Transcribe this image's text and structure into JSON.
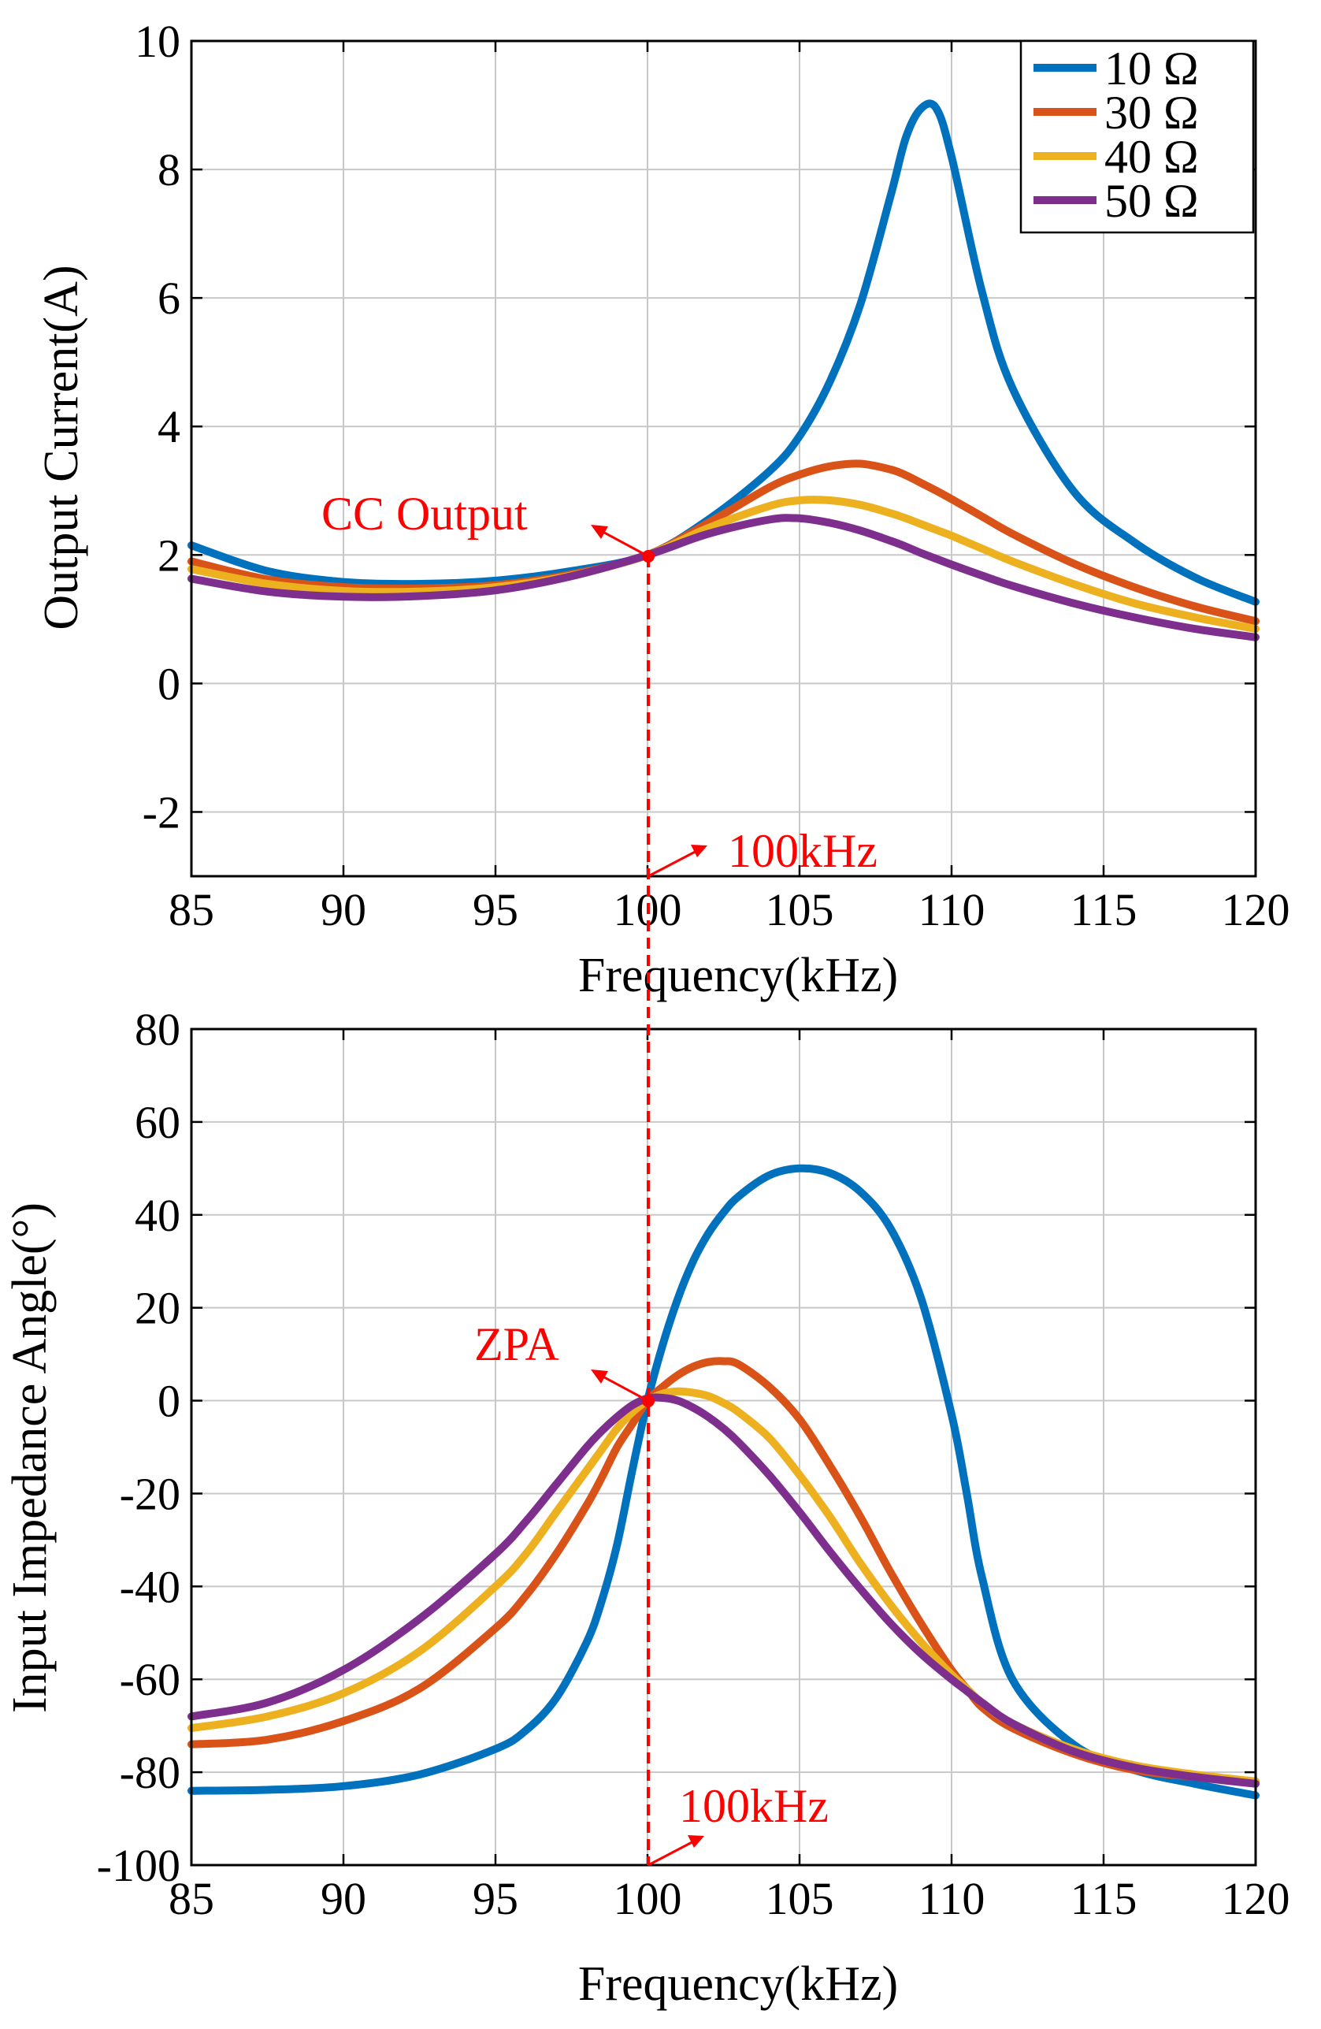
{
  "chart_data": [
    {
      "type": "line",
      "title": "",
      "xlabel": "Frequency(kHz)",
      "ylabel": "Output Current(A)",
      "xlim": [
        85,
        120
      ],
      "ylim": [
        -3,
        10
      ],
      "xticks": [
        85,
        90,
        95,
        100,
        105,
        110,
        115,
        120
      ],
      "yticks": [
        -2,
        0,
        2,
        4,
        6,
        8,
        10
      ],
      "xtick_labels": [
        "85",
        "90",
        "95",
        "100",
        "105",
        "110",
        "115",
        "120"
      ],
      "ytick_labels": [
        "-2",
        "0",
        "2",
        "4",
        "6",
        "8",
        "10"
      ],
      "grid": true,
      "legend": {
        "position": "top-right",
        "entries": [
          "10 Ω",
          "30 Ω",
          "40 Ω",
          "50 Ω"
        ]
      },
      "x": [
        85,
        87.5,
        90,
        92.5,
        95,
        97.5,
        100,
        102,
        104,
        105,
        106,
        107,
        108,
        108.5,
        109,
        109.5,
        110,
        111,
        112,
        114,
        116,
        118,
        120
      ],
      "series": [
        {
          "name": "10 Ω",
          "color": "#0072BD",
          "values": [
            2.15,
            1.75,
            1.58,
            1.55,
            1.6,
            1.75,
            2.0,
            2.55,
            3.3,
            3.85,
            4.7,
            5.9,
            7.6,
            8.5,
            8.95,
            8.95,
            8.2,
            6.1,
            4.6,
            3.0,
            2.2,
            1.65,
            1.27
          ]
        },
        {
          "name": "30 Ω",
          "color": "#D95319",
          "values": [
            1.9,
            1.62,
            1.5,
            1.48,
            1.53,
            1.7,
            2.0,
            2.5,
            3.05,
            3.25,
            3.38,
            3.42,
            3.33,
            3.24,
            3.12,
            3.0,
            2.87,
            2.6,
            2.33,
            1.87,
            1.5,
            1.2,
            0.97
          ]
        },
        {
          "name": "40 Ω",
          "color": "#EDB120",
          "values": [
            1.78,
            1.55,
            1.44,
            1.43,
            1.5,
            1.68,
            2.0,
            2.42,
            2.76,
            2.85,
            2.85,
            2.78,
            2.65,
            2.57,
            2.48,
            2.39,
            2.3,
            2.1,
            1.9,
            1.55,
            1.25,
            1.03,
            0.85
          ]
        },
        {
          "name": "50 Ω",
          "color": "#7E2F8E",
          "values": [
            1.63,
            1.43,
            1.35,
            1.36,
            1.45,
            1.67,
            2.0,
            2.33,
            2.55,
            2.57,
            2.5,
            2.38,
            2.22,
            2.13,
            2.03,
            1.94,
            1.85,
            1.68,
            1.52,
            1.25,
            1.03,
            0.85,
            0.72
          ]
        }
      ],
      "annotations": [
        {
          "text": "CC Output",
          "x": 100,
          "y": 2
        },
        {
          "text": "100kHz",
          "x": 100,
          "y": -3
        }
      ]
    },
    {
      "type": "line",
      "title": "",
      "xlabel": "Frequency(kHz)",
      "ylabel": "Input Impedance Angle(°)",
      "xlim": [
        85,
        120
      ],
      "ylim": [
        -100,
        80
      ],
      "xticks": [
        85,
        90,
        95,
        100,
        105,
        110,
        115,
        120
      ],
      "yticks": [
        -100,
        -80,
        -60,
        -40,
        -20,
        0,
        20,
        40,
        60,
        80
      ],
      "xtick_labels": [
        "85",
        "90",
        "95",
        "100",
        "105",
        "110",
        "115",
        "120"
      ],
      "ytick_labels": [
        "-100",
        "-80",
        "-60",
        "-40",
        "-20",
        "0",
        "20",
        "40",
        "60",
        "80"
      ],
      "grid": true,
      "x": [
        85,
        87.5,
        90,
        92.5,
        95,
        96,
        97,
        98,
        98.5,
        99,
        99.5,
        100,
        100.5,
        101,
        101.5,
        102,
        102.5,
        103,
        104,
        105,
        106,
        107,
        108,
        109,
        110,
        110.5,
        111,
        112,
        114,
        116,
        118,
        120
      ],
      "series": [
        {
          "name": "10 Ω",
          "color": "#0072BD",
          "values": [
            -84,
            -83.8,
            -83,
            -80.5,
            -75,
            -71,
            -64,
            -52,
            -43,
            -31,
            -15,
            0,
            12,
            22,
            30,
            36,
            40.5,
            44,
            48.5,
            50,
            49,
            45,
            37,
            22,
            -3,
            -20,
            -38,
            -60,
            -74,
            -79.5,
            -82.5,
            -85
          ]
        },
        {
          "name": "30 Ω",
          "color": "#D95319",
          "values": [
            -74,
            -73,
            -69,
            -62,
            -49,
            -42,
            -33,
            -22.5,
            -16.5,
            -10,
            -5,
            0,
            3,
            5.5,
            7.3,
            8.3,
            8.5,
            7.8,
            3,
            -4,
            -14,
            -25,
            -37,
            -48,
            -58,
            -62,
            -66,
            -70.5,
            -76,
            -79.5,
            -81,
            -82
          ]
        },
        {
          "name": "40 Ω",
          "color": "#EDB120",
          "values": [
            -70.5,
            -68,
            -63,
            -54,
            -40,
            -33,
            -24,
            -15,
            -10.5,
            -6,
            -2.5,
            0,
            1.5,
            2,
            1.7,
            1,
            -0.5,
            -2.5,
            -8,
            -16,
            -25,
            -35,
            -44,
            -52,
            -59,
            -62,
            -65,
            -69.5,
            -75,
            -78.5,
            -80.5,
            -82
          ]
        },
        {
          "name": "50 Ω",
          "color": "#7E2F8E",
          "values": [
            -68,
            -65,
            -58,
            -47,
            -33,
            -26,
            -18,
            -10,
            -6.5,
            -3.5,
            -1,
            0.5,
            0.6,
            0,
            -1.5,
            -3.5,
            -6,
            -9,
            -16,
            -24,
            -32.5,
            -40.5,
            -48,
            -54.5,
            -60,
            -62.5,
            -65,
            -69.5,
            -75.5,
            -79,
            -81,
            -82.5
          ]
        }
      ],
      "annotations": [
        {
          "text": "ZPA",
          "x": 100,
          "y": 0
        },
        {
          "text": "100kHz",
          "x": 100,
          "y": -100
        }
      ]
    }
  ],
  "colors": {
    "grid": "#c8c8c8",
    "axes": "#000000",
    "annotation": "#ff0000"
  }
}
